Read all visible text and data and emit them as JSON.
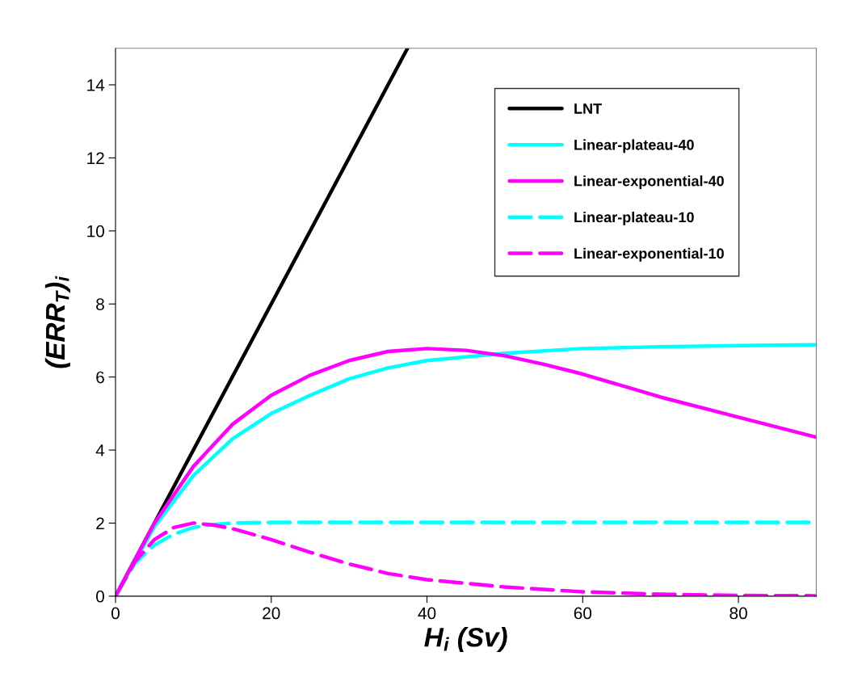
{
  "chart_data": {
    "type": "line",
    "xlabel": "H$_{i}$ (Sv)",
    "ylabel": "(ERR$_{T}$)$_{i}$",
    "xlim": [
      0,
      90
    ],
    "xticks": [
      0,
      20,
      40,
      60,
      80
    ],
    "ylim": [
      0,
      15
    ],
    "yticks": [
      0,
      2,
      4,
      6,
      8,
      10,
      12,
      14
    ],
    "grid": false,
    "legend": "top right",
    "marker": "none",
    "series": [
      {
        "name": "LNT",
        "color": "#000000",
        "line_style": "solid",
        "x": [
          0,
          37.5
        ],
        "values": [
          0,
          15
        ]
      },
      {
        "name": "Linear-plateau-40",
        "color": "#00ffff",
        "line_style": "solid",
        "x": [
          0,
          5,
          10,
          15,
          20,
          25,
          30,
          35,
          40,
          50,
          60,
          70,
          80,
          90
        ],
        "values": [
          0,
          1.9,
          3.3,
          4.3,
          5.0,
          5.5,
          5.95,
          6.25,
          6.45,
          6.65,
          6.78,
          6.83,
          6.86,
          6.88
        ]
      },
      {
        "name": "Linear-exponential-40",
        "color": "#ff00ff",
        "line_style": "solid",
        "x": [
          0,
          5,
          10,
          15,
          20,
          25,
          30,
          35,
          40,
          45,
          50,
          55,
          60,
          70,
          80,
          90
        ],
        "values": [
          0,
          2.0,
          3.55,
          4.7,
          5.5,
          6.05,
          6.45,
          6.7,
          6.78,
          6.73,
          6.58,
          6.35,
          6.08,
          5.45,
          4.9,
          4.35
        ]
      },
      {
        "name": "Linear-plateau-10",
        "color": "#00ffff",
        "line_style": "dashed",
        "x": [
          0,
          2.5,
          5,
          7.5,
          10,
          12.5,
          15,
          20,
          90
        ],
        "values": [
          0,
          0.9,
          1.4,
          1.7,
          1.88,
          1.96,
          2.0,
          2.02,
          2.02
        ]
      },
      {
        "name": "Linear-exponential-10",
        "color": "#ff00ff",
        "line_style": "dashed",
        "x": [
          0,
          2.5,
          5,
          7.5,
          10,
          12.5,
          15,
          20,
          25,
          30,
          35,
          40,
          50,
          60,
          70,
          80,
          90
        ],
        "values": [
          0,
          0.95,
          1.55,
          1.88,
          2.0,
          1.95,
          1.85,
          1.55,
          1.2,
          0.88,
          0.62,
          0.45,
          0.25,
          0.12,
          0.05,
          0.02,
          0.01
        ]
      }
    ]
  }
}
